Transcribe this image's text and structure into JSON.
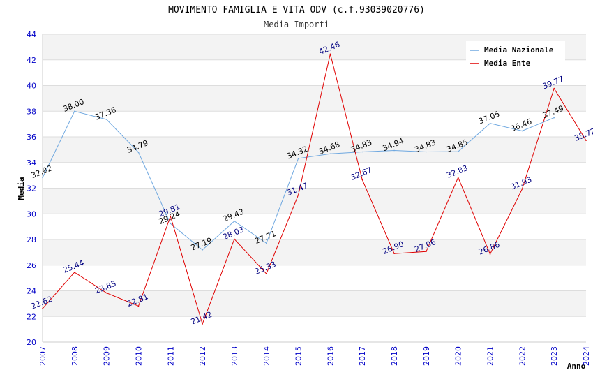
{
  "chart_data": {
    "type": "line",
    "title": "MOVIMENTO FAMIGLIA E VITA ODV (c.f.93039020776)",
    "subtitle": "Media Importi",
    "xlabel": "Anno",
    "ylabel": "Media",
    "ylim": [
      20,
      44
    ],
    "yticks": [
      20,
      22,
      24,
      26,
      28,
      30,
      32,
      34,
      36,
      38,
      40,
      42,
      44
    ],
    "categories": [
      "2007",
      "2008",
      "2009",
      "2010",
      "2011",
      "2012",
      "2013",
      "2014",
      "2015",
      "2016",
      "2017",
      "2018",
      "2019",
      "2020",
      "2021",
      "2022",
      "2023",
      "2024"
    ],
    "legend_position": "top-right",
    "series": [
      {
        "name": "Media Nazionale",
        "color": "#6fa8e0",
        "values": [
          32.82,
          38.0,
          37.36,
          34.79,
          29.24,
          27.19,
          29.43,
          27.71,
          34.32,
          34.68,
          34.83,
          34.94,
          34.83,
          34.85,
          37.05,
          36.46,
          37.49,
          null
        ],
        "labels": [
          "32.82",
          "38.00",
          "37.36",
          "34.79",
          "29.24",
          "27.19",
          "29.43",
          "27.71",
          "34.32",
          "34.68",
          "34.83",
          "34.94",
          "34.83",
          "34.85",
          "37.05",
          "36.46",
          "37.49",
          ""
        ]
      },
      {
        "name": "Media Ente",
        "color": "#e00000",
        "values": [
          22.62,
          25.44,
          23.83,
          22.81,
          29.81,
          21.42,
          28.03,
          25.33,
          31.47,
          42.46,
          32.67,
          26.9,
          27.06,
          32.83,
          26.86,
          31.93,
          39.77,
          35.72
        ],
        "labels": [
          "22.62",
          "25.44",
          "23.83",
          "22.81",
          "29.81",
          "21.42",
          "28.03",
          "25.33",
          "31.47",
          "42.46",
          "32.67",
          "26.90",
          "27.06",
          "32.83",
          "26.86",
          "31.93",
          "39.77",
          "35.72"
        ]
      }
    ]
  }
}
